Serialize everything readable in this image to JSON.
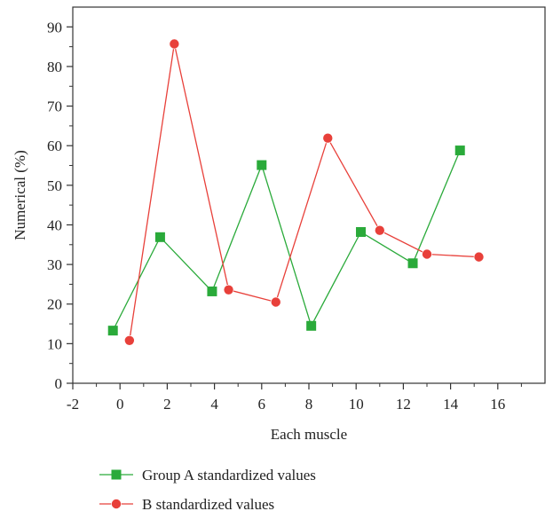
{
  "chart_data": {
    "type": "line",
    "title": "",
    "xlabel": "Each muscle",
    "ylabel": "Numerical (%)",
    "xlim": [
      -2,
      18
    ],
    "ylim": [
      0,
      95
    ],
    "xticks": [
      "-2",
      "0",
      "2",
      "4",
      "6",
      "8",
      "10",
      "12",
      "14",
      "16"
    ],
    "yticks": [
      "0",
      "10",
      "20",
      "30",
      "40",
      "50",
      "60",
      "70",
      "80",
      "90"
    ],
    "grid": false,
    "legend_position": "bottom",
    "series": [
      {
        "name": "Group A standardized values",
        "color": "#2aaa3a",
        "marker": "square",
        "x": [
          -0.3,
          1.7,
          3.9,
          6.0,
          8.1,
          10.2,
          12.4,
          14.4
        ],
        "y": [
          13.3,
          36.9,
          23.2,
          55.1,
          14.5,
          38.2,
          30.3,
          58.8
        ]
      },
      {
        "name": "B standardized values",
        "color": "#e8403a",
        "marker": "circle",
        "x": [
          0.4,
          2.3,
          4.6,
          6.6,
          8.8,
          11.0,
          13.0,
          15.2
        ],
        "y": [
          10.8,
          85.7,
          23.6,
          20.5,
          61.9,
          38.6,
          32.6,
          31.9
        ]
      }
    ]
  }
}
